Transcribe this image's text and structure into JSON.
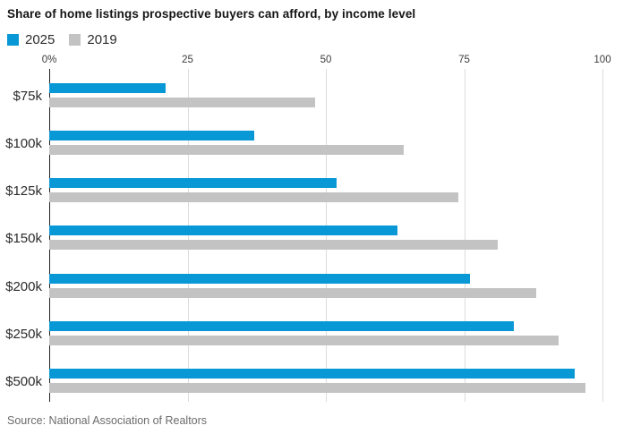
{
  "chart_data": {
    "type": "bar",
    "orientation": "horizontal",
    "title": "Share of home listings prospective buyers can afford, by income level",
    "categories": [
      "$75k",
      "$100k",
      "$125k",
      "$150k",
      "$200k",
      "$250k",
      "$500k"
    ],
    "series": [
      {
        "name": "2025",
        "color": "#0998d6",
        "values": [
          21,
          37,
          52,
          63,
          76,
          84,
          95
        ]
      },
      {
        "name": "2019",
        "color": "#c3c3c3",
        "values": [
          48,
          64,
          74,
          81,
          88,
          92,
          97
        ]
      }
    ],
    "x_ticks": [
      {
        "value": 0,
        "label": "0%"
      },
      {
        "value": 25,
        "label": "25"
      },
      {
        "value": 50,
        "label": "50"
      },
      {
        "value": 75,
        "label": "75"
      },
      {
        "value": 100,
        "label": "100"
      }
    ],
    "xlim": [
      0,
      100
    ],
    "xlabel": "",
    "ylabel": "",
    "legend_position": "top-left",
    "grid": "vertical",
    "zero_line_color": "#222222",
    "gridline_color": "#dcdcdc"
  },
  "source": {
    "text": "Source: National Association of Realtors"
  }
}
